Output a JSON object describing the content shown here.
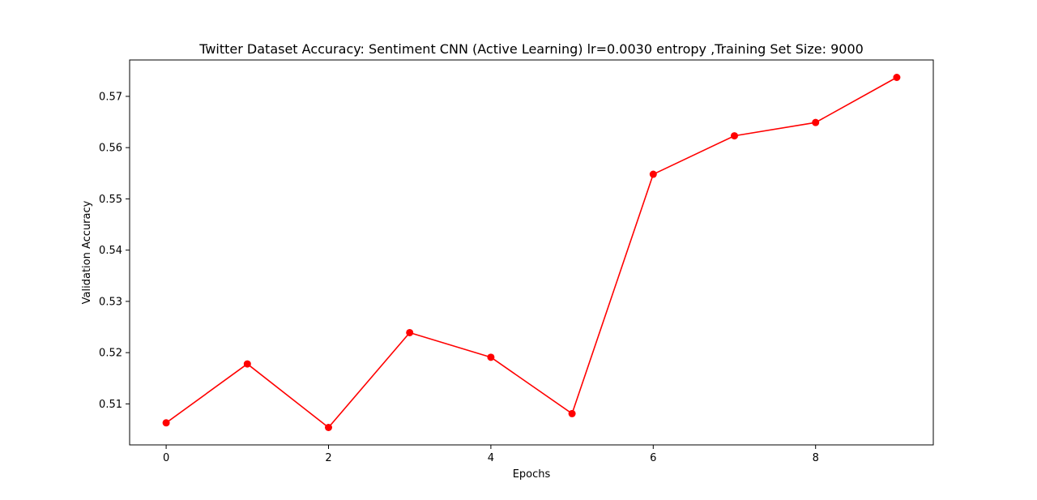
{
  "chart_data": {
    "type": "line",
    "title": "Twitter Dataset Accuracy: Sentiment CNN (Active Learning) lr=0.0030 entropy ,Training Set Size: 9000",
    "xlabel": "Epochs",
    "ylabel": "Validation Accuracy",
    "x": [
      0,
      1,
      2,
      3,
      4,
      5,
      6,
      7,
      8,
      9
    ],
    "series": [
      {
        "values": [
          0.5063,
          0.5178,
          0.5054,
          0.5239,
          0.5191,
          0.5081,
          0.5548,
          0.5623,
          0.5649,
          0.5737
        ],
        "color": "#ff0000",
        "marker": "circle"
      }
    ],
    "xlim": [
      -0.45,
      9.45
    ],
    "ylim": [
      0.502,
      0.5771
    ],
    "xticks": [
      0,
      2,
      4,
      6,
      8
    ],
    "yticks": [
      0.51,
      0.52,
      0.53,
      0.54,
      0.55,
      0.56,
      0.57
    ],
    "xtick_labels": [
      "0",
      "2",
      "4",
      "6",
      "8"
    ],
    "ytick_labels": [
      "0.51",
      "0.52",
      "0.53",
      "0.54",
      "0.55",
      "0.56",
      "0.57"
    ],
    "grid": false,
    "legend": "none"
  }
}
